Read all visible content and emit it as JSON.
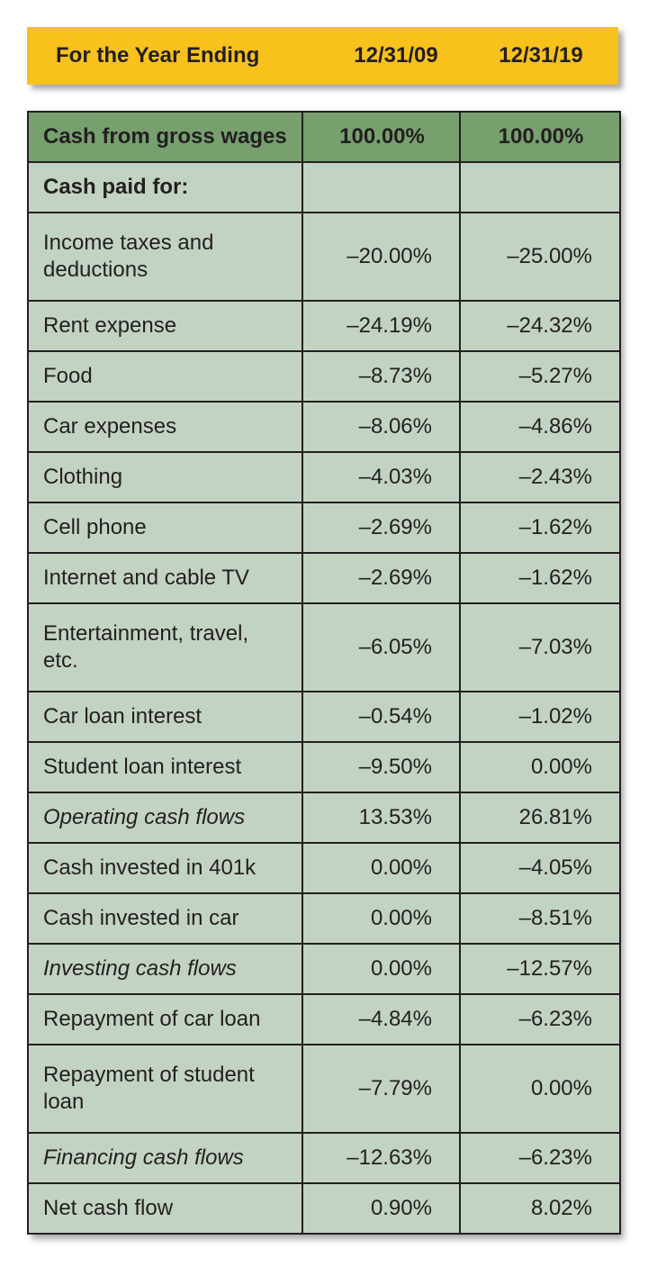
{
  "header": {
    "label": "For the Year Ending",
    "col1": "12/31/09",
    "col2": "12/31/19"
  },
  "rows": [
    {
      "label": "Cash from gross wages",
      "v1": "100.00%",
      "v2": "100.00%",
      "style": "first"
    },
    {
      "label": "Cash paid for:",
      "v1": "",
      "v2": "",
      "style": "section"
    },
    {
      "label": "Income taxes and deductions",
      "v1": "–20.00%",
      "v2": "–25.00%",
      "style": "normal"
    },
    {
      "label": "Rent expense",
      "v1": "–24.19%",
      "v2": "–24.32%",
      "style": "normal"
    },
    {
      "label": "Food",
      "v1": "–8.73%",
      "v2": "–5.27%",
      "style": "normal"
    },
    {
      "label": "Car expenses",
      "v1": "–8.06%",
      "v2": "–4.86%",
      "style": "normal"
    },
    {
      "label": "Clothing",
      "v1": "–4.03%",
      "v2": "–2.43%",
      "style": "normal"
    },
    {
      "label": "Cell phone",
      "v1": "–2.69%",
      "v2": "–1.62%",
      "style": "normal"
    },
    {
      "label": "Internet and cable TV",
      "v1": "–2.69%",
      "v2": "–1.62%",
      "style": "normal"
    },
    {
      "label": "Entertainment, travel, etc.",
      "v1": "–6.05%",
      "v2": "–7.03%",
      "style": "normal"
    },
    {
      "label": "Car loan interest",
      "v1": "–0.54%",
      "v2": "–1.02%",
      "style": "normal"
    },
    {
      "label": "Student loan interest",
      "v1": "–9.50%",
      "v2": "0.00%",
      "style": "normal"
    },
    {
      "label": "Operating cash flows",
      "v1": "13.53%",
      "v2": "26.81%",
      "style": "italic"
    },
    {
      "label": "Cash invested in 401k",
      "v1": "0.00%",
      "v2": "–4.05%",
      "style": "normal"
    },
    {
      "label": "Cash invested in car",
      "v1": "0.00%",
      "v2": "–8.51%",
      "style": "normal"
    },
    {
      "label": "Investing cash flows",
      "v1": "0.00%",
      "v2": "–12.57%",
      "style": "italic"
    },
    {
      "label": "Repayment of car loan",
      "v1": "–4.84%",
      "v2": "–6.23%",
      "style": "normal"
    },
    {
      "label": "Repayment of student loan",
      "v1": "–7.79%",
      "v2": "0.00%",
      "style": "normal"
    },
    {
      "label": "Financing cash flows",
      "v1": "–12.63%",
      "v2": "–6.23%",
      "style": "italic"
    },
    {
      "label": "Net cash flow",
      "v1": "0.90%",
      "v2": "8.02%",
      "style": "normal"
    }
  ],
  "colors": {
    "header_band": "#f8c11c",
    "table_body": "#c3d3c3",
    "first_row": "#77a06e",
    "text": "#231f20"
  }
}
